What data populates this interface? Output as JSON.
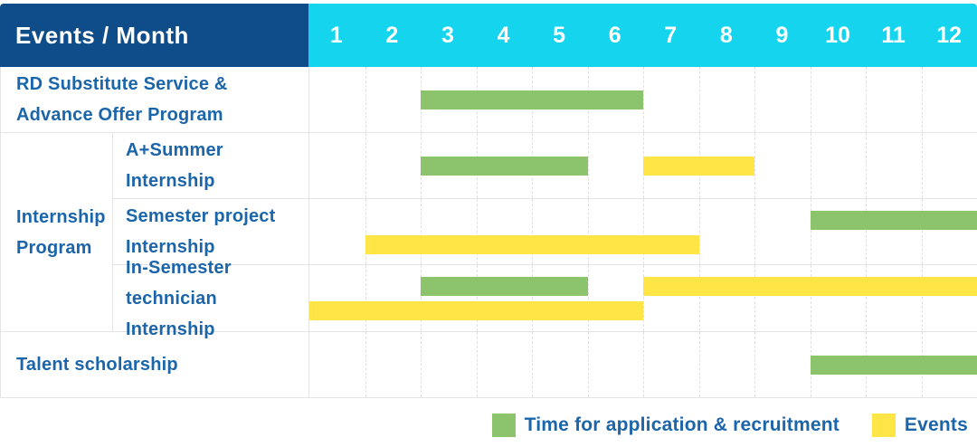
{
  "colors": {
    "header_navy": "#0f4d8a",
    "month_cyan": "#14d4ee",
    "label_blue": "#1b65ab",
    "recruitment_green": "#8cc46d",
    "events_yellow": "#ffe545",
    "grid_line": "#e4e4e4",
    "month_divider": "#e0e0e0",
    "background": "#ffffff"
  },
  "chart_data": {
    "type": "table",
    "subtype": "gantt-schedule",
    "title": "Events / Month",
    "header": {
      "corner_label": "Events / Month"
    },
    "months": [
      "1",
      "2",
      "3",
      "4",
      "5",
      "6",
      "7",
      "8",
      "9",
      "10",
      "11",
      "12"
    ],
    "x_axis": {
      "label": "Month",
      "range": [
        1,
        12
      ],
      "grid": "dashed-vertical"
    },
    "legend_position": "bottom-right",
    "series": [
      {
        "id": "recruitment",
        "name": "Time for application & recruitment",
        "color": "#8cc46d"
      },
      {
        "id": "events",
        "name": "Events",
        "color": "#ffe545"
      }
    ],
    "groups": [
      {
        "name": "Internship Program",
        "label_lines": [
          "Internship",
          "Program"
        ]
      }
    ],
    "rows": [
      {
        "category": "RD Substitute Service & Advance Offer Program",
        "label_lines": [
          "RD Substitute Service &",
          "Advance Offer Program"
        ],
        "group": null,
        "bar_lines": 1,
        "bars": [
          {
            "series": "recruitment",
            "start_month": 3,
            "end_month": 6,
            "line": 0
          }
        ]
      },
      {
        "category": "A+Summer Internship",
        "label_lines": [
          "A+Summer",
          "Internship"
        ],
        "group": "Internship Program",
        "bar_lines": 1,
        "bars": [
          {
            "series": "recruitment",
            "start_month": 3,
            "end_month": 5,
            "line": 0
          },
          {
            "series": "events",
            "start_month": 7,
            "end_month": 8,
            "line": 0
          }
        ]
      },
      {
        "category": "Semester project Internship",
        "label_lines": [
          "Semester project",
          "Internship"
        ],
        "group": "Internship Program",
        "bar_lines": 2,
        "bars": [
          {
            "series": "recruitment",
            "start_month": 10,
            "end_month": 12,
            "line": 0
          },
          {
            "series": "events",
            "start_month": 2,
            "end_month": 7,
            "line": 1
          }
        ]
      },
      {
        "category": "In-Semester technician Internship",
        "label_lines": [
          "In-Semester",
          "technician Internship"
        ],
        "group": "Internship Program",
        "bar_lines": 2,
        "bars": [
          {
            "series": "recruitment",
            "start_month": 3,
            "end_month": 5,
            "line": 0
          },
          {
            "series": "events",
            "start_month": 7,
            "end_month": 12,
            "line": 0
          },
          {
            "series": "events",
            "start_month": 1,
            "end_month": 6,
            "line": 1
          }
        ]
      },
      {
        "category": "Talent scholarship",
        "label_lines": [
          "Talent scholarship"
        ],
        "group": null,
        "bar_lines": 1,
        "bars": [
          {
            "series": "recruitment",
            "start_month": 10,
            "end_month": 12,
            "line": 0
          }
        ]
      }
    ]
  }
}
